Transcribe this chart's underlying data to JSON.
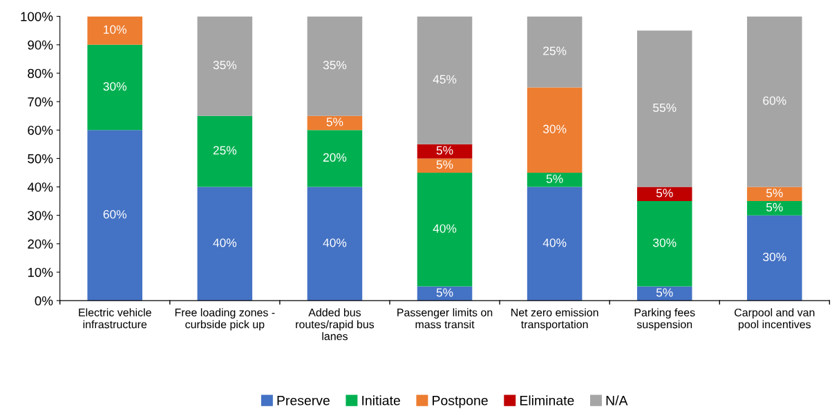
{
  "chart_data": {
    "type": "bar",
    "stacked": true,
    "categories": [
      "Electric vehicle\ninfrastructure",
      "Free loading zones -\ncurbside pick up",
      "Added bus\nroutes/rapid bus\nlanes",
      "Passenger limits on\nmass transit",
      "Net zero emission\ntransportation",
      "Parking fees\nsuspension",
      "Carpool and van\npool incentives"
    ],
    "series": [
      {
        "name": "Preserve",
        "color": "#4472c4",
        "values": [
          60,
          40,
          40,
          5,
          40,
          5,
          30
        ],
        "value_labels": [
          "60%",
          "40%",
          "40%",
          "5%",
          "40%",
          "5%",
          "30%"
        ]
      },
      {
        "name": "Initiate",
        "color": "#00b050",
        "values": [
          30,
          25,
          20,
          40,
          5,
          30,
          5
        ],
        "value_labels": [
          "30%",
          "25%",
          "20%",
          "40%",
          "5%",
          "30%",
          "5%"
        ]
      },
      {
        "name": "Postpone",
        "color": "#ed7d31",
        "values": [
          10,
          0,
          5,
          5,
          30,
          0,
          5
        ],
        "value_labels": [
          "10%",
          null,
          "5%",
          "5%",
          "30%",
          null,
          "5%"
        ]
      },
      {
        "name": "Eliminate",
        "color": "#c00000",
        "values": [
          0,
          0,
          0,
          5,
          0,
          5,
          0
        ],
        "value_labels": [
          null,
          null,
          null,
          "5%",
          null,
          "5%",
          null
        ]
      },
      {
        "name": "N/A",
        "color": "#a5a5a5",
        "values": [
          0,
          35,
          35,
          45,
          25,
          55,
          60
        ],
        "value_labels": [
          null,
          "35%",
          "35%",
          "45%",
          "25%",
          "55%",
          "60%"
        ]
      }
    ],
    "ylim": [
      0,
      100
    ],
    "yticks": [
      {
        "value": 0,
        "label": "0%"
      },
      {
        "value": 10,
        "label": "10%"
      },
      {
        "value": 20,
        "label": "20%"
      },
      {
        "value": 30,
        "label": "30%"
      },
      {
        "value": 40,
        "label": "40%"
      },
      {
        "value": 50,
        "label": "50%"
      },
      {
        "value": 60,
        "label": "60%"
      },
      {
        "value": 70,
        "label": "70%"
      },
      {
        "value": 80,
        "label": "80%"
      },
      {
        "value": 90,
        "label": "90%"
      },
      {
        "value": 100,
        "label": "100%"
      }
    ],
    "grid": false,
    "legend": "bottom"
  }
}
